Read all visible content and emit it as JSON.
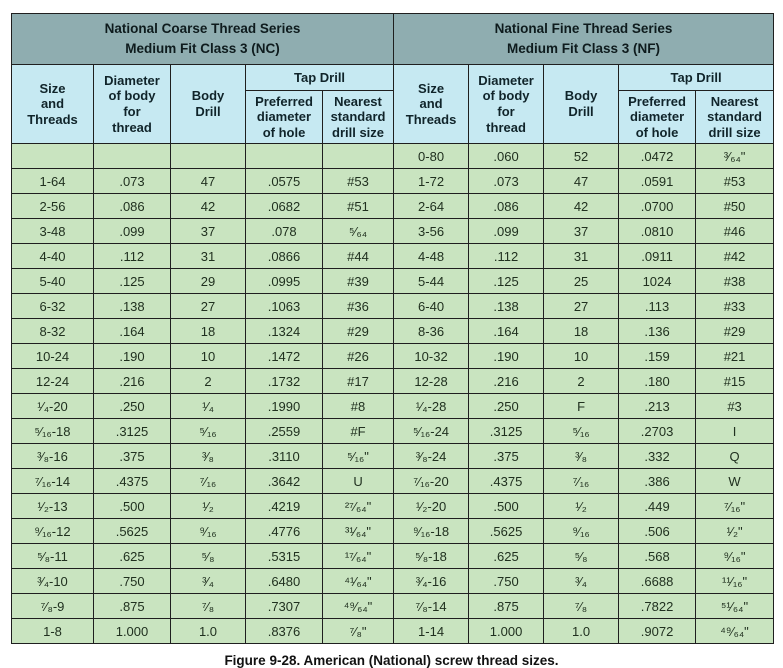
{
  "colors": {
    "title_bg": "#8fadb0",
    "header_bg": "#c6e9f2",
    "row_bg": "#c9e4c0",
    "border": "#1f1f1f"
  },
  "caption": "Figure 9-28. American (National) screw thread sizes.",
  "table": {
    "section_titles": [
      "National Coarse Thread Series\nMedium Fit Class 3 (NC)",
      "National Fine Thread Series\nMedium Fit Class 3 (NF)"
    ],
    "column_headers": {
      "size": "Size\nand\nThreads",
      "diameter": "Diameter\nof body\nfor\nthread",
      "body_drill": "Body\nDrill",
      "tap_drill_group": "Tap Drill",
      "preferred": "Preferred\ndiameter\nof hole",
      "nearest": "Nearest\nstandard\ndrill size"
    },
    "rows": [
      {
        "nc": [
          "",
          "",
          "",
          "",
          ""
        ],
        "nf": [
          "0-80",
          ".060",
          "52",
          ".0472",
          "³⁄₆₄\""
        ]
      },
      {
        "nc": [
          "1-64",
          ".073",
          "47",
          ".0575",
          "#53"
        ],
        "nf": [
          "1-72",
          ".073",
          "47",
          ".0591",
          "#53"
        ]
      },
      {
        "nc": [
          "2-56",
          ".086",
          "42",
          ".0682",
          "#51"
        ],
        "nf": [
          "2-64",
          ".086",
          "42",
          ".0700",
          "#50"
        ]
      },
      {
        "nc": [
          "3-48",
          ".099",
          "37",
          ".078",
          "⁵⁄₆₄"
        ],
        "nf": [
          "3-56",
          ".099",
          "37",
          ".0810",
          "#46"
        ]
      },
      {
        "nc": [
          "4-40",
          ".112",
          "31",
          ".0866",
          "#44"
        ],
        "nf": [
          "4-48",
          ".112",
          "31",
          ".0911",
          "#42"
        ]
      },
      {
        "nc": [
          "5-40",
          ".125",
          "29",
          ".0995",
          "#39"
        ],
        "nf": [
          "5-44",
          ".125",
          "25",
          "1024",
          "#38"
        ]
      },
      {
        "nc": [
          "6-32",
          ".138",
          "27",
          ".1063",
          "#36"
        ],
        "nf": [
          "6-40",
          ".138",
          "27",
          ".113",
          "#33"
        ]
      },
      {
        "nc": [
          "8-32",
          ".164",
          "18",
          ".1324",
          "#29"
        ],
        "nf": [
          "8-36",
          ".164",
          "18",
          ".136",
          "#29"
        ]
      },
      {
        "nc": [
          "10-24",
          ".190",
          "10",
          ".1472",
          "#26"
        ],
        "nf": [
          "10-32",
          ".190",
          "10",
          ".159",
          "#21"
        ]
      },
      {
        "nc": [
          "12-24",
          ".216",
          "2",
          ".1732",
          "#17"
        ],
        "nf": [
          "12-28",
          ".216",
          "2",
          ".180",
          "#15"
        ]
      },
      {
        "nc": [
          "¹⁄₄-20",
          ".250",
          "¹⁄₄",
          ".1990",
          "#8"
        ],
        "nf": [
          "¹⁄₄-28",
          ".250",
          "F",
          ".213",
          "#3"
        ]
      },
      {
        "nc": [
          "⁵⁄₁₆-18",
          ".3125",
          "⁵⁄₁₆",
          ".2559",
          "#F"
        ],
        "nf": [
          "⁵⁄₁₆-24",
          ".3125",
          "⁵⁄₁₆",
          ".2703",
          "I"
        ]
      },
      {
        "nc": [
          "³⁄₈-16",
          ".375",
          "³⁄₈",
          ".3110",
          "⁵⁄₁₆\""
        ],
        "nf": [
          "³⁄₈-24",
          ".375",
          "³⁄₈",
          ".332",
          "Q"
        ]
      },
      {
        "nc": [
          "⁷⁄₁₆-14",
          ".4375",
          "⁷⁄₁₆",
          ".3642",
          "U"
        ],
        "nf": [
          "⁷⁄₁₆-20",
          ".4375",
          "⁷⁄₁₆",
          ".386",
          "W"
        ]
      },
      {
        "nc": [
          "¹⁄₂-13",
          ".500",
          "¹⁄₂",
          ".4219",
          "²⁷⁄₆₄\""
        ],
        "nf": [
          "¹⁄₂-20",
          ".500",
          "¹⁄₂",
          ".449",
          "⁷⁄₁₆\""
        ]
      },
      {
        "nc": [
          "⁹⁄₁₆-12",
          ".5625",
          "⁹⁄₁₆",
          ".4776",
          "³¹⁄₆₄\""
        ],
        "nf": [
          "⁹⁄₁₆-18",
          ".5625",
          "⁹⁄₁₆",
          ".506",
          "¹⁄₂\""
        ]
      },
      {
        "nc": [
          "⁵⁄₈-11",
          ".625",
          "⁵⁄₈",
          ".5315",
          "¹⁷⁄₆₄\""
        ],
        "nf": [
          "⁵⁄₈-18",
          ".625",
          "⁵⁄₈",
          ".568",
          "⁹⁄₁₆\""
        ]
      },
      {
        "nc": [
          "³⁄₄-10",
          ".750",
          "³⁄₄",
          ".6480",
          "⁴¹⁄₆₄\""
        ],
        "nf": [
          "³⁄₄-16",
          ".750",
          "³⁄₄",
          ".6688",
          "¹¹⁄₁₆\""
        ]
      },
      {
        "nc": [
          "⁷⁄₈-9",
          ".875",
          "⁷⁄₈",
          ".7307",
          "⁴⁹⁄₆₄\""
        ],
        "nf": [
          "⁷⁄₈-14",
          ".875",
          "⁷⁄₈",
          ".7822",
          "⁵¹⁄₆₄\""
        ]
      },
      {
        "nc": [
          "1-8",
          "1.000",
          "1.0",
          ".8376",
          "⁷⁄₈\""
        ],
        "nf": [
          "1-14",
          "1.000",
          "1.0",
          ".9072",
          "⁴⁹⁄₆₄\""
        ]
      }
    ]
  }
}
